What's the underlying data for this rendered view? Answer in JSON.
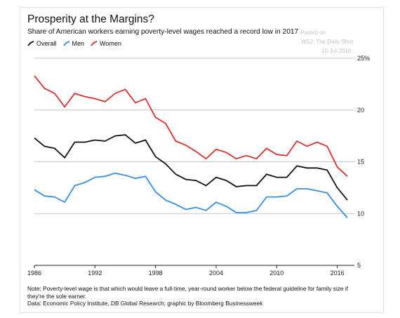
{
  "header": {
    "title": "Prosperity at the Margins?",
    "subtitle": "Share of American workers earning poverty-level wages reached a record low in 2017"
  },
  "watermark": {
    "line1": "Posted on",
    "line2": "WSJ: The Daily Shot",
    "line3": "10-Jul-2018"
  },
  "legend": {
    "overall": "Overall",
    "men": "Men",
    "women": "Women"
  },
  "footer": {
    "note": "Note: Poverty-level wage is that which would leave a full-time, year-round worker below the federal guideline for family size if they're the sole earner.",
    "source": "Data: Economic Policy Institute, DB Global Research; graphic by Bloomberg Businessweek"
  },
  "colors": {
    "overall": "#111111",
    "men": "#3b8fe0",
    "women": "#d8332e"
  },
  "chart_data": {
    "type": "line",
    "title": "Prosperity at the Margins?",
    "subtitle": "Share of American workers earning poverty-level wages reached a record low in 2017",
    "x": [
      1986,
      1987,
      1988,
      1989,
      1990,
      1991,
      1992,
      1993,
      1994,
      1995,
      1996,
      1997,
      1998,
      1999,
      2000,
      2001,
      2002,
      2003,
      2004,
      2005,
      2006,
      2007,
      2008,
      2009,
      2010,
      2011,
      2012,
      2013,
      2014,
      2015,
      2016,
      2017
    ],
    "series": [
      {
        "name": "Overall",
        "color": "#111111",
        "values": [
          17.3,
          16.5,
          16.3,
          15.4,
          16.9,
          16.9,
          17.1,
          17.0,
          17.5,
          17.6,
          16.8,
          17.1,
          15.5,
          14.8,
          13.8,
          13.3,
          13.2,
          12.7,
          13.5,
          13.2,
          12.6,
          12.7,
          12.7,
          13.8,
          13.5,
          13.5,
          14.6,
          14.4,
          14.4,
          14.2,
          12.5,
          11.3
        ]
      },
      {
        "name": "Men",
        "color": "#3b8fe0",
        "values": [
          12.3,
          11.7,
          11.6,
          11.1,
          12.7,
          13.0,
          13.5,
          13.6,
          13.9,
          13.7,
          13.4,
          13.6,
          12.1,
          11.3,
          10.9,
          10.4,
          10.6,
          10.3,
          11.1,
          10.7,
          10.1,
          10.1,
          10.3,
          11.6,
          11.6,
          11.7,
          12.4,
          12.4,
          12.2,
          12.0,
          10.7,
          9.6
        ]
      },
      {
        "name": "Women",
        "color": "#d8332e",
        "values": [
          23.3,
          22.1,
          21.6,
          20.3,
          21.6,
          21.3,
          21.1,
          20.8,
          21.6,
          22.0,
          20.7,
          21.1,
          19.3,
          18.7,
          17.0,
          16.6,
          16.0,
          15.3,
          16.2,
          15.9,
          15.3,
          15.6,
          15.3,
          16.3,
          15.7,
          15.6,
          17.0,
          16.5,
          16.9,
          16.5,
          14.5,
          13.6
        ]
      }
    ],
    "xlabel": "",
    "ylabel": "",
    "xlim": [
      1986,
      2017
    ],
    "ylim": [
      5,
      25
    ],
    "yticks": [
      5,
      10,
      15,
      20,
      25
    ],
    "ytick_labels": [
      "5",
      "10",
      "15",
      "20",
      "25%"
    ],
    "xticks": [
      1986,
      1992,
      1998,
      2004,
      2010,
      2016
    ],
    "xtick_labels": [
      "1986",
      "1992",
      "1998",
      "2004",
      "2010",
      "2016"
    ],
    "grid": true,
    "legend_position": "top-left"
  }
}
